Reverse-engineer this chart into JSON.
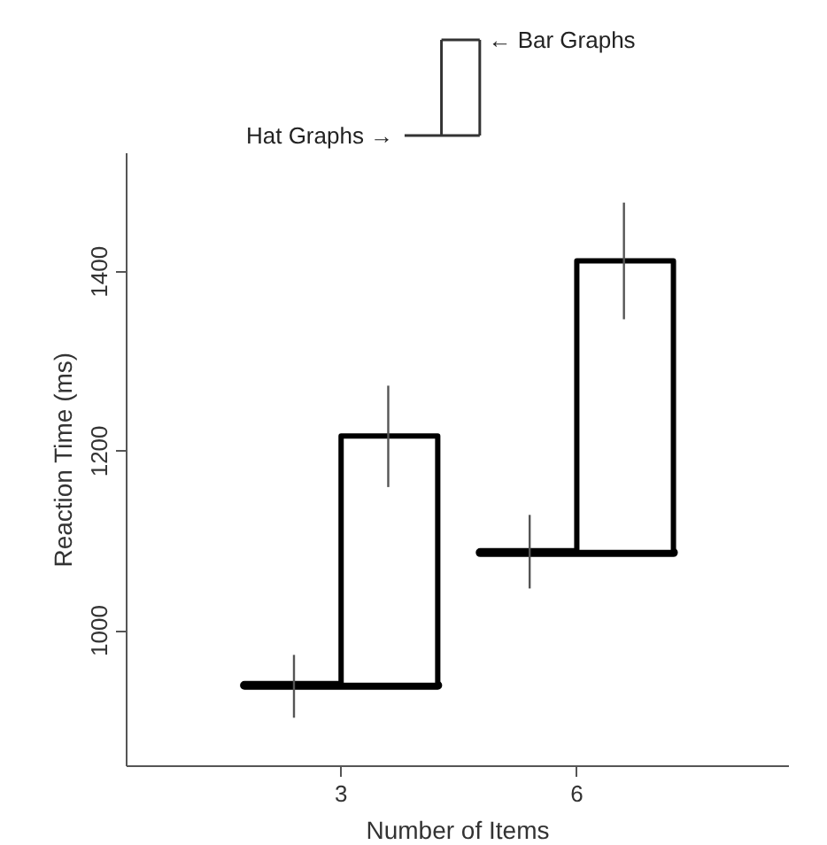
{
  "chart_data": {
    "type": "bar",
    "xlabel": "Number of Items",
    "ylabel": "Reaction Time (ms)",
    "categories": [
      "3",
      "6"
    ],
    "series": [
      {
        "color": "#000000",
        "base": [
          939,
          1087
        ],
        "values": [
          0,
          0
        ],
        "errors": [
          [
            903,
            973
          ],
          [
            1047,
            1129
          ]
        ]
      },
      {
        "color": "#000000",
        "base": [
          939,
          1087
        ],
        "values": [
          278,
          325
        ],
        "errors": [
          [
            1160,
            1273
          ],
          [
            1347,
            1477
          ]
        ]
      }
    ],
    "ylim": [
      849,
      1532
    ],
    "yticks": [
      1000,
      1200,
      1400
    ],
    "grid": false,
    "annotations": [
      "Hat Graphs →",
      "← Bar Graphs"
    ]
  }
}
